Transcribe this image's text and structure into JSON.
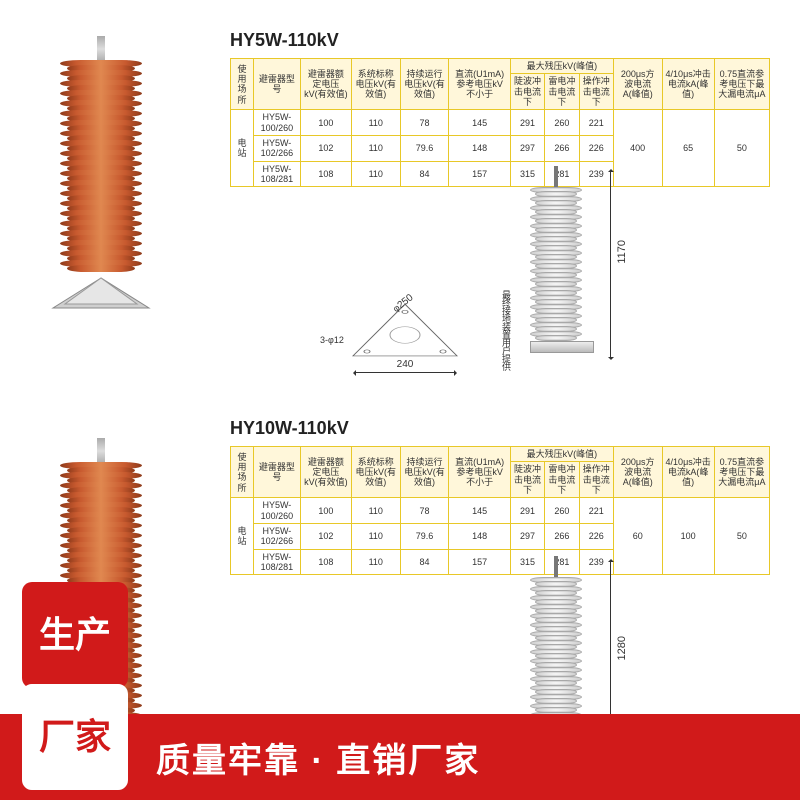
{
  "section1": {
    "title": "HY5W-110kV",
    "table": {
      "columns_top": [
        "使用场所",
        "避雷器型号",
        "避雷器额定电压kV(有效值)",
        "系统标称电压kV(有效值)",
        "持续运行电压kV(有效值)",
        "直流(U1mA)参考电压kV不小于",
        "最大残压kV(峰值)",
        "200μs方波电流A(峰值)",
        "4/10μs冲击电流kA(峰值)",
        "0.75直流参考电压下最大漏电流μA"
      ],
      "sub_residual": [
        "陡波冲击电流下",
        "雷电冲击电流下",
        "操作冲击电流下"
      ],
      "rows": [
        {
          "place": "电站",
          "model": "HY5W-100/260",
          "rated": "100",
          "sys": "110",
          "cont": "78",
          "dc": "145",
          "r1": "291",
          "r2": "260",
          "r3": "221",
          "a": "400",
          "b": "65",
          "c": "50",
          "mergeA": true
        },
        {
          "place": "",
          "model": "HY5W-102/266",
          "rated": "102",
          "sys": "110",
          "cont": "79.6",
          "dc": "148",
          "r1": "297",
          "r2": "266",
          "r3": "226",
          "a": "",
          "b": "",
          "c": ""
        },
        {
          "place": "",
          "model": "HY5W-108/281",
          "rated": "108",
          "sys": "110",
          "cont": "84",
          "dc": "157",
          "r1": "315",
          "r2": "281",
          "r3": "239",
          "a": "",
          "b": "",
          "c": ""
        }
      ]
    },
    "drawing": {
      "height_label": "1170",
      "base_w": "240",
      "base_diag": "250",
      "hole": "3-φ12",
      "note": "最终接地装置用户提供"
    }
  },
  "section2": {
    "title": "HY10W-110kV",
    "table": {
      "columns_top": [
        "使用场所",
        "避雷器型号",
        "避雷器额定电压kV(有效值)",
        "系统标称电压kV(有效值)",
        "持续运行电压kV(有效值)",
        "直流(U1mA)参考电压kV不小于",
        "最大残压kV(峰值)",
        "200μs方波电流A(峰值)",
        "4/10μs冲击电流kA(峰值)",
        "0.75直流参考电压下最大漏电流μA"
      ],
      "sub_residual": [
        "陡波冲击电流下",
        "雷电冲击电流下",
        "操作冲击电流下"
      ],
      "rows": [
        {
          "place": "电站",
          "model": "HY5W-100/260",
          "rated": "100",
          "sys": "110",
          "cont": "78",
          "dc": "145",
          "r1": "291",
          "r2": "260",
          "r3": "221",
          "a": "60",
          "b": "100",
          "c": "50",
          "mergeA": true
        },
        {
          "place": "",
          "model": "HY5W-102/266",
          "rated": "102",
          "sys": "110",
          "cont": "79.6",
          "dc": "148",
          "r1": "297",
          "r2": "266",
          "r3": "226",
          "a": "",
          "b": "",
          "c": ""
        },
        {
          "place": "",
          "model": "HY5W-108/281",
          "rated": "108",
          "sys": "110",
          "cont": "84",
          "dc": "157",
          "r1": "315",
          "r2": "281",
          "r3": "239",
          "a": "",
          "b": "",
          "c": ""
        }
      ]
    },
    "drawing": {
      "height_label": "1280"
    }
  },
  "banner": {
    "sq1": "生产",
    "sq2": "厂家",
    "text": "质量牢靠 · 直销厂家"
  }
}
